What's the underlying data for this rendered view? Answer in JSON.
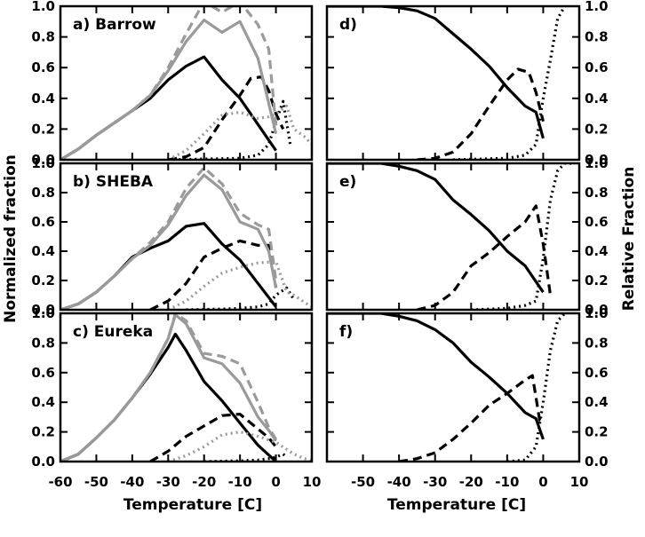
{
  "figure": {
    "ylabel_left": "Normalized fraction",
    "ylabel_right": "Relative Fraction",
    "xlabel_left": "Temperature [C]",
    "xlabel_right": "Temperature [C]",
    "colors": {
      "black": "#000000",
      "gray": "#9a9a9a"
    },
    "line_styles": [
      "solid",
      "dashed",
      "dotted"
    ]
  },
  "chart_data": [
    {
      "type": "line",
      "panel": "a",
      "label": "a) Barrow",
      "xlim": [
        -60,
        10
      ],
      "ylim": [
        0,
        1.0
      ],
      "xticks": [
        -60,
        -50,
        -40,
        -30,
        -20,
        -10,
        0,
        10
      ],
      "yticks": [
        0.0,
        0.2,
        0.4,
        0.6,
        0.8,
        1.0
      ],
      "show_x_tick_labels": false,
      "show_y_tick_labels": true,
      "y_axis_side": "left",
      "series": [
        {
          "color": "black",
          "style": "solid",
          "x": [
            -60,
            -55,
            -50,
            -45,
            -40,
            -35,
            -30,
            -25,
            -20,
            -15,
            -10,
            -5,
            0
          ],
          "y": [
            0,
            0.07,
            0.16,
            0.24,
            0.32,
            0.4,
            0.52,
            0.61,
            0.67,
            0.52,
            0.4,
            0.23,
            0.06
          ]
        },
        {
          "color": "black",
          "style": "dashed",
          "x": [
            -30,
            -25,
            -20,
            -15,
            -10,
            -7,
            -4,
            -2,
            0,
            2
          ],
          "y": [
            0,
            0.02,
            0.08,
            0.26,
            0.42,
            0.53,
            0.54,
            0.45,
            0.3,
            0.2
          ]
        },
        {
          "color": "black",
          "style": "dotted",
          "x": [
            -30,
            -20,
            -10,
            -5,
            -2,
            0,
            2,
            4
          ],
          "y": [
            0,
            0.005,
            0.01,
            0.03,
            0.1,
            0.25,
            0.38,
            0.1
          ]
        },
        {
          "color": "gray",
          "style": "solid",
          "x": [
            -60,
            -55,
            -50,
            -45,
            -40,
            -35,
            -30,
            -25,
            -20,
            -15,
            -10,
            -5,
            0
          ],
          "y": [
            0,
            0.07,
            0.16,
            0.24,
            0.32,
            0.42,
            0.58,
            0.77,
            0.91,
            0.83,
            0.9,
            0.66,
            0.17
          ]
        },
        {
          "color": "gray",
          "style": "dashed",
          "x": [
            -50,
            -45,
            -40,
            -35,
            -30,
            -25,
            -20,
            -15,
            -10,
            -5,
            -2,
            0
          ],
          "y": [
            0.16,
            0.24,
            0.32,
            0.42,
            0.6,
            0.82,
            1.03,
            0.96,
            1.03,
            0.88,
            0.72,
            0.22
          ]
        },
        {
          "color": "gray",
          "style": "dotted",
          "x": [
            -30,
            -25,
            -20,
            -15,
            -10,
            -5,
            -2,
            0,
            3,
            5,
            8,
            10
          ],
          "y": [
            0,
            0.06,
            0.17,
            0.29,
            0.31,
            0.27,
            0.28,
            0.3,
            0.35,
            0.2,
            0.15,
            0.1
          ]
        }
      ]
    },
    {
      "type": "line",
      "panel": "b",
      "label": "b) SHEBA",
      "xlim": [
        -60,
        10
      ],
      "ylim": [
        0,
        1.0
      ],
      "xticks": [
        -60,
        -50,
        -40,
        -30,
        -20,
        -10,
        0,
        10
      ],
      "yticks": [
        0.0,
        0.2,
        0.4,
        0.6,
        0.8,
        1.0
      ],
      "show_x_tick_labels": false,
      "show_y_tick_labels": true,
      "y_axis_side": "left",
      "series": [
        {
          "color": "black",
          "style": "solid",
          "x": [
            -60,
            -55,
            -50,
            -45,
            -40,
            -35,
            -30,
            -25,
            -20,
            -15,
            -10,
            -5,
            0
          ],
          "y": [
            0,
            0.04,
            0.12,
            0.23,
            0.36,
            0.42,
            0.47,
            0.57,
            0.59,
            0.45,
            0.34,
            0.18,
            0.02
          ]
        },
        {
          "color": "black",
          "style": "dashed",
          "x": [
            -35,
            -30,
            -25,
            -20,
            -15,
            -10,
            -5,
            -2,
            0
          ],
          "y": [
            0,
            0.06,
            0.18,
            0.36,
            0.42,
            0.47,
            0.44,
            0.44,
            0.15
          ]
        },
        {
          "color": "black",
          "style": "dotted",
          "x": [
            -25,
            -15,
            -10,
            -5,
            -2,
            0,
            3,
            5
          ],
          "y": [
            0,
            0.005,
            0.01,
            0.02,
            0.04,
            0.1,
            0.15,
            0.07
          ]
        },
        {
          "color": "gray",
          "style": "solid",
          "x": [
            -60,
            -55,
            -50,
            -45,
            -40,
            -35,
            -30,
            -25,
            -20,
            -15,
            -10,
            -5,
            -2,
            0
          ],
          "y": [
            0,
            0.04,
            0.12,
            0.23,
            0.35,
            0.44,
            0.58,
            0.78,
            0.92,
            0.82,
            0.6,
            0.55,
            0.4,
            0.15
          ]
        },
        {
          "color": "gray",
          "style": "dashed",
          "x": [
            -50,
            -45,
            -40,
            -35,
            -30,
            -25,
            -20,
            -15,
            -10,
            -5,
            -2,
            0
          ],
          "y": [
            0.12,
            0.23,
            0.35,
            0.46,
            0.6,
            0.83,
            0.97,
            0.86,
            0.66,
            0.58,
            0.55,
            0.2
          ]
        },
        {
          "color": "gray",
          "style": "dotted",
          "x": [
            -30,
            -25,
            -20,
            -15,
            -10,
            -5,
            0,
            3,
            5,
            8,
            10
          ],
          "y": [
            0,
            0.06,
            0.16,
            0.25,
            0.29,
            0.32,
            0.33,
            0.12,
            0.1,
            0.05,
            0.02
          ]
        }
      ]
    },
    {
      "type": "line",
      "panel": "c",
      "label": "c) Eureka",
      "xlim": [
        -60,
        10
      ],
      "ylim": [
        0,
        1.0
      ],
      "xticks": [
        -60,
        -50,
        -40,
        -30,
        -20,
        -10,
        0,
        10
      ],
      "yticks": [
        0.0,
        0.2,
        0.4,
        0.6,
        0.8,
        1.0
      ],
      "show_x_tick_labels": true,
      "show_y_tick_labels": true,
      "y_axis_side": "left",
      "series": [
        {
          "color": "black",
          "style": "solid",
          "x": [
            -60,
            -55,
            -50,
            -45,
            -40,
            -35,
            -30,
            -28,
            -25,
            -20,
            -15,
            -10,
            -5,
            0
          ],
          "y": [
            0,
            0.05,
            0.16,
            0.28,
            0.43,
            0.59,
            0.77,
            0.86,
            0.75,
            0.54,
            0.41,
            0.26,
            0.11,
            0
          ]
        },
        {
          "color": "black",
          "style": "dashed",
          "x": [
            -35,
            -30,
            -25,
            -20,
            -15,
            -10,
            -5,
            -2,
            0
          ],
          "y": [
            0,
            0.07,
            0.17,
            0.24,
            0.31,
            0.32,
            0.22,
            0.16,
            0.1
          ]
        },
        {
          "color": "black",
          "style": "dotted",
          "x": [
            -20,
            -10,
            -5,
            -2,
            0,
            2,
            3
          ],
          "y": [
            0,
            0.005,
            0.01,
            0.02,
            0.03,
            0.05,
            0.03
          ]
        },
        {
          "color": "gray",
          "style": "solid",
          "x": [
            -60,
            -55,
            -50,
            -45,
            -40,
            -35,
            -30,
            -28,
            -25,
            -20,
            -15,
            -10,
            -5,
            -2,
            0
          ],
          "y": [
            0,
            0.05,
            0.16,
            0.28,
            0.43,
            0.6,
            0.83,
            0.99,
            0.93,
            0.7,
            0.66,
            0.53,
            0.3,
            0.21,
            0.14
          ]
        },
        {
          "color": "gray",
          "style": "dashed",
          "x": [
            -50,
            -45,
            -40,
            -35,
            -30,
            -28,
            -25,
            -20,
            -15,
            -10,
            -5,
            -2,
            0
          ],
          "y": [
            0.16,
            0.28,
            0.43,
            0.6,
            0.83,
            1.0,
            0.95,
            0.73,
            0.71,
            0.66,
            0.4,
            0.23,
            0.15
          ]
        },
        {
          "color": "gray",
          "style": "dotted",
          "x": [
            -30,
            -25,
            -20,
            -15,
            -10,
            -5,
            0,
            5,
            8,
            10
          ],
          "y": [
            0,
            0.04,
            0.1,
            0.18,
            0.2,
            0.17,
            0.13,
            0.05,
            0.02,
            0.01
          ]
        }
      ]
    },
    {
      "type": "line",
      "panel": "d",
      "label": "d)",
      "xlim": [
        -60,
        10
      ],
      "ylim": [
        0,
        1.0
      ],
      "xticks": [
        -50,
        -40,
        -30,
        -20,
        -10,
        0,
        10
      ],
      "yticks": [
        0.0,
        0.2,
        0.4,
        0.6,
        0.8,
        1.0
      ],
      "show_x_tick_labels": false,
      "show_y_tick_labels": true,
      "y_axis_side": "right",
      "series": [
        {
          "color": "black",
          "style": "solid",
          "x": [
            -60,
            -50,
            -45,
            -40,
            -35,
            -30,
            -25,
            -20,
            -15,
            -10,
            -5,
            -2,
            0
          ],
          "y": [
            1.0,
            1.0,
            1.0,
            0.99,
            0.97,
            0.92,
            0.82,
            0.72,
            0.61,
            0.47,
            0.35,
            0.31,
            0.14
          ]
        },
        {
          "color": "black",
          "style": "dashed",
          "x": [
            -35,
            -30,
            -25,
            -20,
            -15,
            -10,
            -7,
            -4,
            -2,
            0
          ],
          "y": [
            0,
            0.01,
            0.05,
            0.17,
            0.35,
            0.52,
            0.59,
            0.57,
            0.44,
            0.25
          ]
        },
        {
          "color": "black",
          "style": "dotted",
          "x": [
            -25,
            -10,
            -5,
            -2,
            0,
            2,
            4,
            6
          ],
          "y": [
            0,
            0.01,
            0.03,
            0.1,
            0.4,
            0.65,
            0.92,
            1.0
          ]
        }
      ]
    },
    {
      "type": "line",
      "panel": "e",
      "label": "e)",
      "xlim": [
        -60,
        10
      ],
      "ylim": [
        0,
        1.0
      ],
      "xticks": [
        -50,
        -40,
        -30,
        -20,
        -10,
        0,
        10
      ],
      "yticks": [
        0.0,
        0.2,
        0.4,
        0.6,
        0.8,
        1.0
      ],
      "show_x_tick_labels": false,
      "show_y_tick_labels": true,
      "y_axis_side": "right",
      "series": [
        {
          "color": "black",
          "style": "solid",
          "x": [
            -60,
            -50,
            -45,
            -40,
            -35,
            -30,
            -25,
            -20,
            -15,
            -10,
            -5,
            0
          ],
          "y": [
            1.0,
            1.0,
            1.0,
            0.98,
            0.95,
            0.89,
            0.75,
            0.65,
            0.54,
            0.4,
            0.3,
            0.12
          ]
        },
        {
          "color": "black",
          "style": "dashed",
          "x": [
            -35,
            -30,
            -25,
            -20,
            -15,
            -10,
            -5,
            -2,
            0,
            2
          ],
          "y": [
            0,
            0.03,
            0.12,
            0.3,
            0.39,
            0.5,
            0.6,
            0.71,
            0.45,
            0.1
          ]
        },
        {
          "color": "black",
          "style": "dotted",
          "x": [
            -20,
            -10,
            -5,
            -2,
            0,
            2,
            4,
            6,
            8
          ],
          "y": [
            0,
            0.01,
            0.03,
            0.06,
            0.35,
            0.75,
            0.95,
            1.0,
            1.0
          ]
        }
      ]
    },
    {
      "type": "line",
      "panel": "f",
      "label": "f)",
      "xlim": [
        -60,
        10
      ],
      "ylim": [
        0,
        1.0
      ],
      "xticks": [
        -50,
        -40,
        -30,
        -20,
        -10,
        0,
        10
      ],
      "yticks": [
        0.0,
        0.2,
        0.4,
        0.6,
        0.8,
        1.0
      ],
      "show_x_tick_labels": true,
      "show_y_tick_labels": true,
      "y_axis_side": "right",
      "series": [
        {
          "color": "black",
          "style": "solid",
          "x": [
            -60,
            -50,
            -45,
            -40,
            -35,
            -30,
            -25,
            -20,
            -15,
            -10,
            -5,
            -2,
            0
          ],
          "y": [
            1.0,
            1.0,
            1.0,
            0.98,
            0.95,
            0.89,
            0.8,
            0.67,
            0.57,
            0.46,
            0.33,
            0.29,
            0.15
          ]
        },
        {
          "color": "black",
          "style": "dashed",
          "x": [
            -40,
            -35,
            -30,
            -25,
            -20,
            -15,
            -10,
            -5,
            -3,
            -1,
            0
          ],
          "y": [
            0,
            0.02,
            0.06,
            0.15,
            0.26,
            0.38,
            0.46,
            0.55,
            0.58,
            0.28,
            0.27
          ]
        },
        {
          "color": "black",
          "style": "dotted",
          "x": [
            -10,
            -5,
            -2,
            0,
            2,
            4,
            6
          ],
          "y": [
            0,
            0.01,
            0.1,
            0.4,
            0.75,
            0.95,
            1.0
          ]
        }
      ]
    }
  ]
}
